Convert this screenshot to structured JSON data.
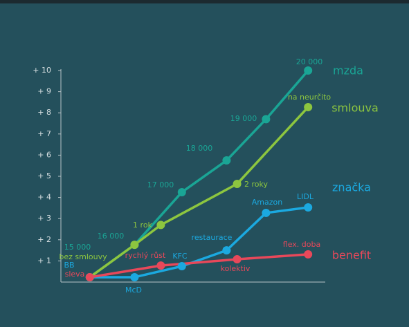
{
  "chart_data": {
    "type": "line",
    "xlim": [
      0,
      10
    ],
    "ylim": [
      0,
      10
    ],
    "yticks": [
      {
        "value": 1,
        "label": "+ 1"
      },
      {
        "value": 2,
        "label": "+ 2"
      },
      {
        "value": 3,
        "label": "+ 3"
      },
      {
        "value": 4,
        "label": "+ 4"
      },
      {
        "value": 5,
        "label": "+ 5"
      },
      {
        "value": 6,
        "label": "+ 6"
      },
      {
        "value": 7,
        "label": "+ 7"
      },
      {
        "value": 8,
        "label": "+ 8"
      },
      {
        "value": 9,
        "label": "+ 9"
      },
      {
        "value": 10,
        "label": "+ 10"
      }
    ],
    "series": [
      {
        "name": "mzda",
        "color": "#1aa595",
        "x": [
          1.1,
          2.8,
          4.6,
          6.3,
          7.8,
          9.4
        ],
        "values": [
          0.23,
          1.76,
          4.25,
          5.75,
          7.7,
          10
        ],
        "point_labels": [
          "15 000",
          "16 000",
          "17 000",
          "18 000",
          "19 000",
          "20 000"
        ]
      },
      {
        "name": "smlouva",
        "color": "#8dc63f",
        "x": [
          1.1,
          2.8,
          3.8,
          6.7,
          9.4
        ],
        "values": [
          0.23,
          1.76,
          2.7,
          4.64,
          8.27
        ],
        "point_labels": [
          "bez smlouvy",
          null,
          "1 rok",
          "2 roky",
          "na neurčito"
        ]
      },
      {
        "name": "značka",
        "color": "#1ba9e0",
        "x": [
          1.1,
          2.8,
          4.6,
          6.3,
          7.8,
          9.4
        ],
        "values": [
          0.23,
          0.23,
          0.75,
          1.5,
          3.27,
          3.53
        ],
        "point_labels": [
          "BB",
          "McD",
          "KFC",
          "restaurace",
          "Amazon",
          "LIDL"
        ]
      },
      {
        "name": "benefit",
        "color": "#e8485a",
        "x": [
          1.1,
          3.8,
          6.7,
          9.4
        ],
        "values": [
          0.23,
          0.78,
          1.08,
          1.31
        ],
        "point_labels": [
          "sleva",
          "rychlý růst",
          "kolektiv",
          "flex. doba"
        ]
      }
    ]
  }
}
